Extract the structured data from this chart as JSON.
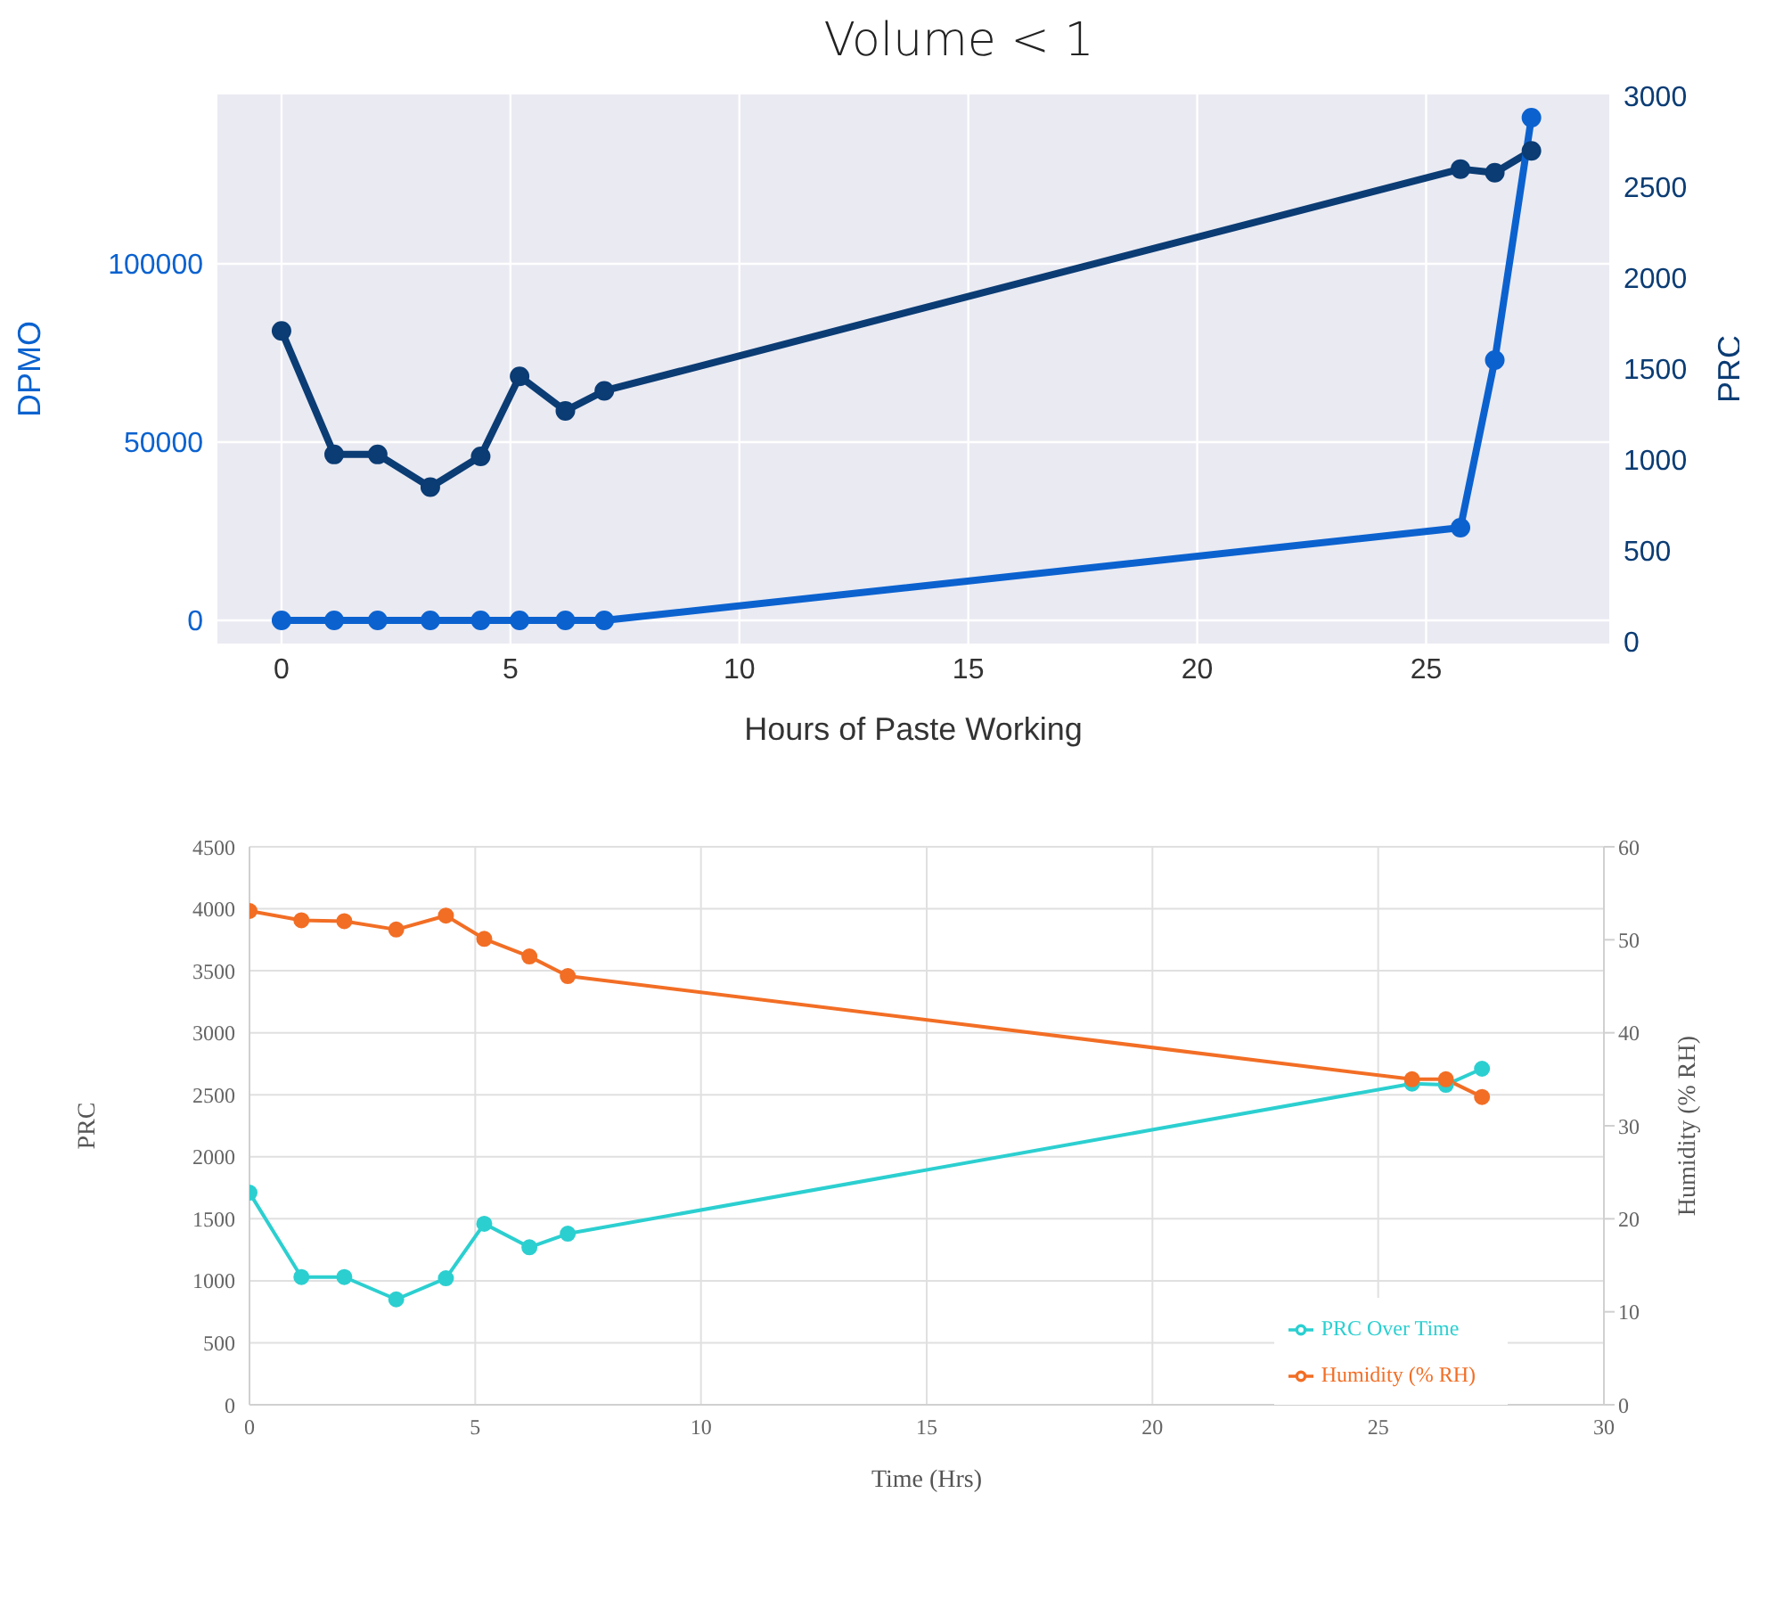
{
  "chart_data": [
    {
      "type": "line",
      "title": "Volume < 1",
      "xlabel": "Hours of Paste Working",
      "ylabel": "DPMO",
      "y2label": "PRC",
      "x": [
        0,
        1.15,
        2.1,
        3.25,
        4.35,
        5.2,
        6.2,
        7.05,
        25.75,
        26.5,
        27.3
      ],
      "series": [
        {
          "color": "#0b3c74",
          "axis": "y2",
          "values": [
            1710,
            1030,
            1030,
            850,
            1020,
            1460,
            1270,
            1380,
            2600,
            2580,
            2700
          ]
        },
        {
          "color": "#0b62cf",
          "axis": "y",
          "values": [
            0,
            0,
            0,
            0,
            0,
            0,
            0,
            0,
            26000,
            73000,
            141000
          ]
        }
      ],
      "xlim": [
        -1.4,
        29
      ],
      "xticks": [
        0,
        5,
        10,
        15,
        20,
        25
      ],
      "ylim": [
        -6500,
        147500
      ],
      "yticks": [
        0,
        50000,
        100000
      ],
      "y2lim": [
        -10,
        3010
      ],
      "y2ticks": [
        0,
        500,
        1000,
        1500,
        2000,
        2500,
        3000
      ],
      "grid": true,
      "legend": false,
      "marker": "circle",
      "line_style": "solid"
    },
    {
      "type": "line",
      "xlabel": "Time (Hrs)",
      "ylabel": "PRC",
      "y2label": "Humidity (% RH)",
      "x": [
        0,
        1.15,
        2.1,
        3.25,
        4.35,
        5.2,
        6.2,
        7.05,
        25.75,
        26.5,
        27.3
      ],
      "series": [
        {
          "name": "PRC Over Time",
          "color": "#2ccfd0",
          "values": [
            1710,
            1030,
            1030,
            850,
            1020,
            1460,
            1270,
            1380,
            2590,
            2580,
            2710
          ]
        },
        {
          "name": "Humidity (% RH)",
          "color": "#f26e25",
          "axis": "y2",
          "values": [
            53.1,
            52.1,
            52,
            51.1,
            52.6,
            50.1,
            48.2,
            46.1,
            35,
            35,
            33.1
          ]
        }
      ],
      "xlim": [
        0,
        30
      ],
      "xticks": [
        0,
        5,
        10,
        15,
        20,
        25,
        30
      ],
      "ylim": [
        0,
        4500
      ],
      "yticks": [
        0,
        500,
        1000,
        1500,
        2000,
        2500,
        3000,
        3500,
        4000,
        4500
      ],
      "y2lim": [
        0,
        60
      ],
      "y2ticks": [
        0,
        10,
        20,
        30,
        40,
        50,
        60
      ],
      "grid": true,
      "legend": "bottom right",
      "marker": "circle",
      "line_style": "solid"
    }
  ]
}
